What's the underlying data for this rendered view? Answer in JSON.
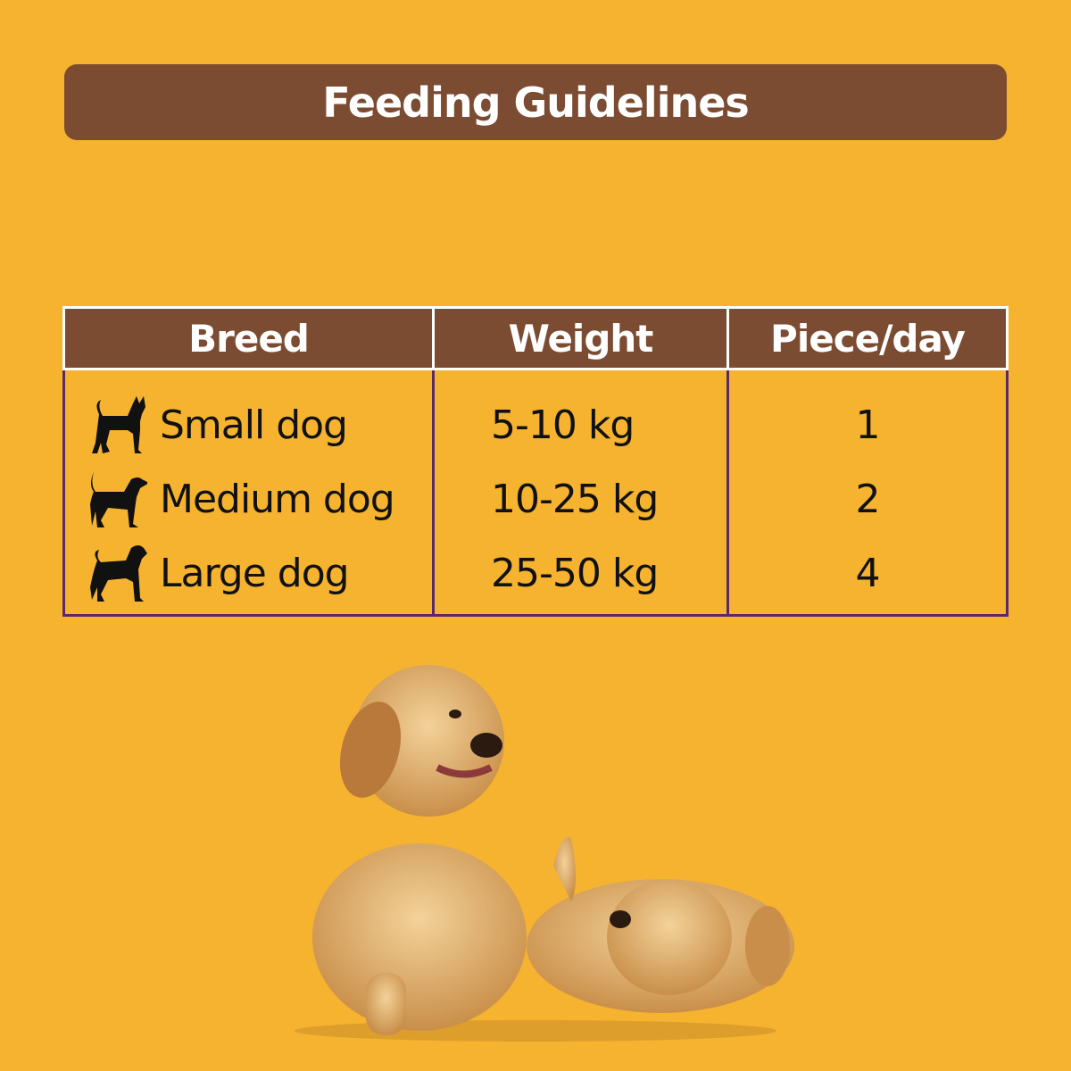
{
  "title": "Feeding Guidelines",
  "table": {
    "headers": [
      "Breed",
      "Weight",
      "Piece/day"
    ],
    "rows": [
      {
        "icon": "small-dog-icon",
        "breed": "Small dog",
        "weight": "5-10 kg",
        "pieces": "1"
      },
      {
        "icon": "medium-dog-icon",
        "breed": "Medium dog",
        "weight": "10-25 kg",
        "pieces": "2"
      },
      {
        "icon": "large-dog-icon",
        "breed": "Large dog",
        "weight": "25-50 kg",
        "pieces": "4"
      }
    ]
  },
  "colors": {
    "background": "#F5B32F",
    "brown": "#7B4C32",
    "border": "#5B2A66"
  }
}
